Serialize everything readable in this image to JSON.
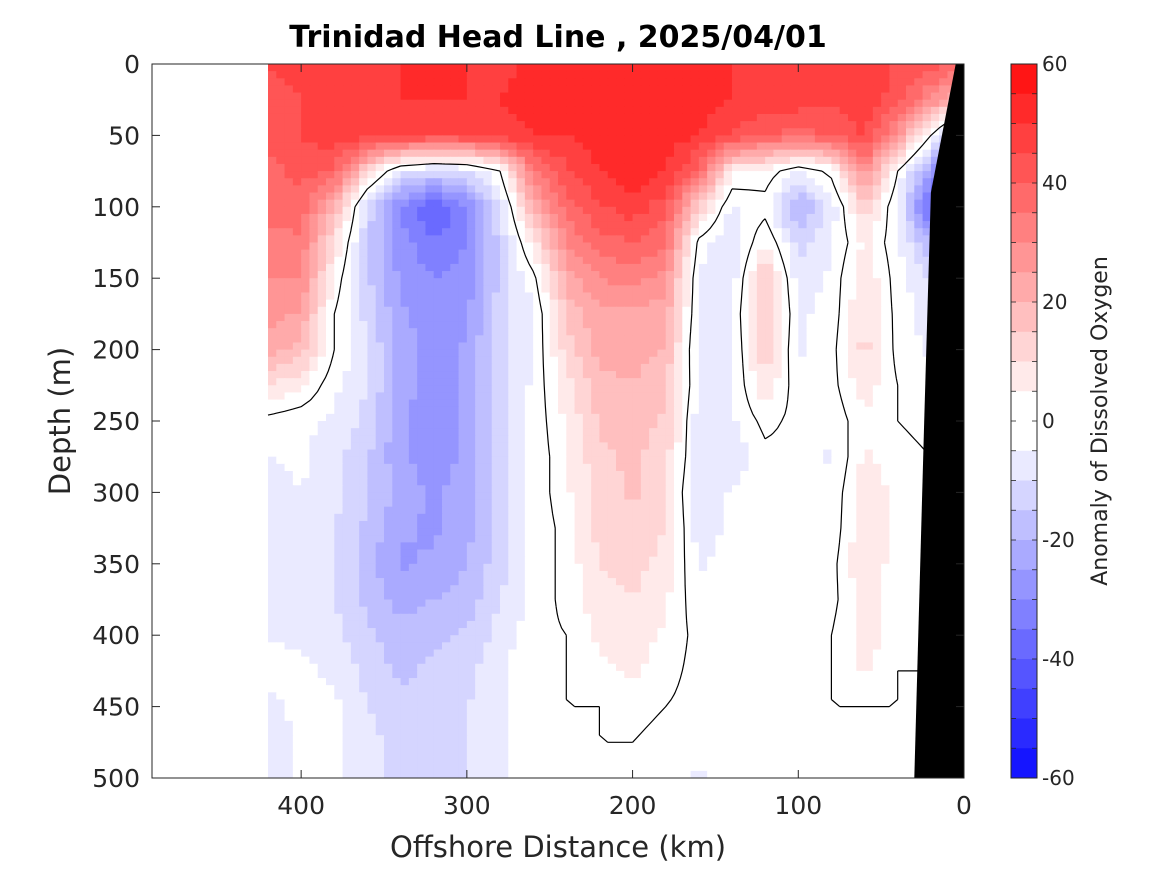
{
  "chart_data": {
    "type": "contour",
    "title": "Trinidad Head Line , 2025/04/01",
    "xlabel": "Offshore Distance (km)",
    "ylabel": "Depth (m)",
    "colorbar_label": "Anomaly of Dissolved Oxygen",
    "xlim": [
      490,
      0
    ],
    "ylim": [
      500,
      0
    ],
    "clim": [
      -60,
      60
    ],
    "contour_step": 5,
    "x_ticks": [
      400,
      300,
      200,
      100,
      0
    ],
    "y_ticks": [
      0,
      50,
      100,
      150,
      200,
      250,
      300,
      350,
      400,
      450,
      500
    ],
    "colorbar_ticks": [
      60,
      40,
      20,
      0,
      -20,
      -40,
      -60
    ],
    "colormap": "blue-white-red",
    "colors": {
      "negative_max": "#0000ff",
      "zero": "#ffffff",
      "positive_max": "#ff0000",
      "bathymetry": "#000000"
    },
    "data_x_start_km": 420,
    "grid": {
      "x_km": [
        420,
        400,
        380,
        360,
        340,
        320,
        300,
        280,
        260,
        240,
        220,
        200,
        180,
        160,
        140,
        120,
        100,
        80,
        60,
        40,
        20
      ],
      "depth_m": [
        0,
        25,
        50,
        75,
        100,
        125,
        150,
        175,
        200,
        225,
        250,
        275,
        300,
        325,
        350,
        375,
        400,
        425,
        450,
        475,
        500
      ],
      "anomaly": [
        [
          45,
          46,
          47,
          48,
          50,
          50,
          50,
          48,
          52,
          52,
          52,
          52,
          52,
          52,
          50,
          50,
          50,
          48,
          46,
          45,
          42
        ],
        [
          44,
          45,
          47,
          48,
          50,
          50,
          50,
          50,
          52,
          52,
          52,
          53,
          53,
          52,
          50,
          48,
          48,
          46,
          48,
          43,
          30
        ],
        [
          42,
          45,
          48,
          48,
          48,
          45,
          46,
          48,
          50,
          50,
          52,
          54,
          53,
          50,
          45,
          40,
          38,
          40,
          46,
          28,
          0
        ],
        [
          38,
          42,
          40,
          12,
          -8,
          -12,
          -10,
          0,
          34,
          44,
          50,
          54,
          50,
          38,
          6,
          4,
          -5,
          2,
          30,
          0,
          -25
        ],
        [
          36,
          38,
          20,
          -12,
          -30,
          -42,
          -30,
          -10,
          20,
          38,
          44,
          48,
          42,
          14,
          -6,
          -3,
          -22,
          -8,
          14,
          -6,
          -40
        ],
        [
          34,
          34,
          10,
          -14,
          -28,
          -34,
          -30,
          -14,
          8,
          30,
          38,
          40,
          36,
          -2,
          -10,
          6,
          -12,
          -6,
          6,
          -4,
          -20
        ],
        [
          30,
          30,
          4,
          -14,
          -26,
          -30,
          -28,
          -14,
          -2,
          22,
          30,
          32,
          28,
          -6,
          -8,
          16,
          -8,
          -4,
          10,
          -3,
          -10
        ],
        [
          28,
          24,
          0,
          -12,
          -24,
          -28,
          -26,
          -12,
          -6,
          16,
          24,
          24,
          22,
          -6,
          -6,
          18,
          -6,
          -3,
          10,
          -2,
          -8
        ],
        [
          22,
          18,
          0,
          -10,
          -22,
          -28,
          -24,
          -12,
          -5,
          12,
          22,
          22,
          20,
          -8,
          -6,
          14,
          -6,
          -2,
          12,
          -2,
          -6
        ],
        [
          10,
          6,
          -4,
          -10,
          -22,
          -28,
          -24,
          -12,
          -4,
          8,
          18,
          20,
          16,
          -6,
          -6,
          10,
          -4,
          -2,
          8,
          0,
          -4
        ],
        [
          -2,
          -4,
          -6,
          -12,
          -24,
          -30,
          -24,
          -12,
          -4,
          6,
          16,
          18,
          14,
          -8,
          -6,
          2,
          -2,
          -4,
          4,
          0,
          -2
        ],
        [
          -5,
          -4,
          -8,
          -14,
          -24,
          -28,
          -24,
          -12,
          -4,
          4,
          14,
          16,
          12,
          -8,
          -10,
          -2,
          -2,
          -6,
          6,
          2,
          0
        ],
        [
          -8,
          -5,
          -8,
          -14,
          -22,
          -26,
          -22,
          -12,
          -4,
          4,
          12,
          16,
          10,
          -10,
          -4,
          0,
          -2,
          -4,
          8,
          4,
          0
        ],
        [
          -10,
          -6,
          -10,
          -16,
          -24,
          -26,
          -22,
          -12,
          -4,
          2,
          12,
          14,
          10,
          -8,
          -4,
          0,
          -2,
          -4,
          10,
          4,
          0
        ],
        [
          -8,
          -8,
          -10,
          -18,
          -26,
          -24,
          -20,
          -12,
          -4,
          2,
          10,
          12,
          8,
          -6,
          -2,
          0,
          -2,
          -2,
          10,
          2,
          0
        ],
        [
          -6,
          -8,
          -10,
          -16,
          -22,
          -20,
          -18,
          -10,
          -4,
          2,
          8,
          10,
          6,
          -4,
          0,
          0,
          0,
          -2,
          8,
          2,
          0
        ],
        [
          -5,
          -6,
          -8,
          -14,
          -18,
          -16,
          -14,
          -8,
          -2,
          0,
          6,
          8,
          4,
          -2,
          0,
          0,
          0,
          0,
          8,
          2,
          0
        ],
        [
          -4,
          -4,
          -6,
          -12,
          -16,
          -14,
          -12,
          -6,
          0,
          0,
          4,
          6,
          2,
          -2,
          0,
          0,
          0,
          0,
          6,
          0,
          0
        ],
        [
          -6,
          -4,
          -4,
          -10,
          -14,
          -12,
          -10,
          -6,
          0,
          0,
          0,
          2,
          0,
          -2,
          0,
          0,
          0,
          0,
          0,
          0,
          0
        ],
        [
          -8,
          -4,
          -4,
          -8,
          -12,
          -12,
          -10,
          -6,
          0,
          0,
          0,
          0,
          -2,
          -4,
          0,
          0,
          0,
          0,
          0,
          0,
          -6
        ],
        [
          -8,
          -4,
          -4,
          -8,
          -12,
          -12,
          -10,
          -6,
          0,
          0,
          0,
          0,
          -2,
          -6,
          0,
          0,
          0,
          0,
          0,
          0,
          -6
        ]
      ]
    },
    "bathymetry": [
      [
        5,
        0
      ],
      [
        20,
        90
      ],
      [
        24,
        250
      ],
      [
        30,
        500
      ]
    ]
  }
}
